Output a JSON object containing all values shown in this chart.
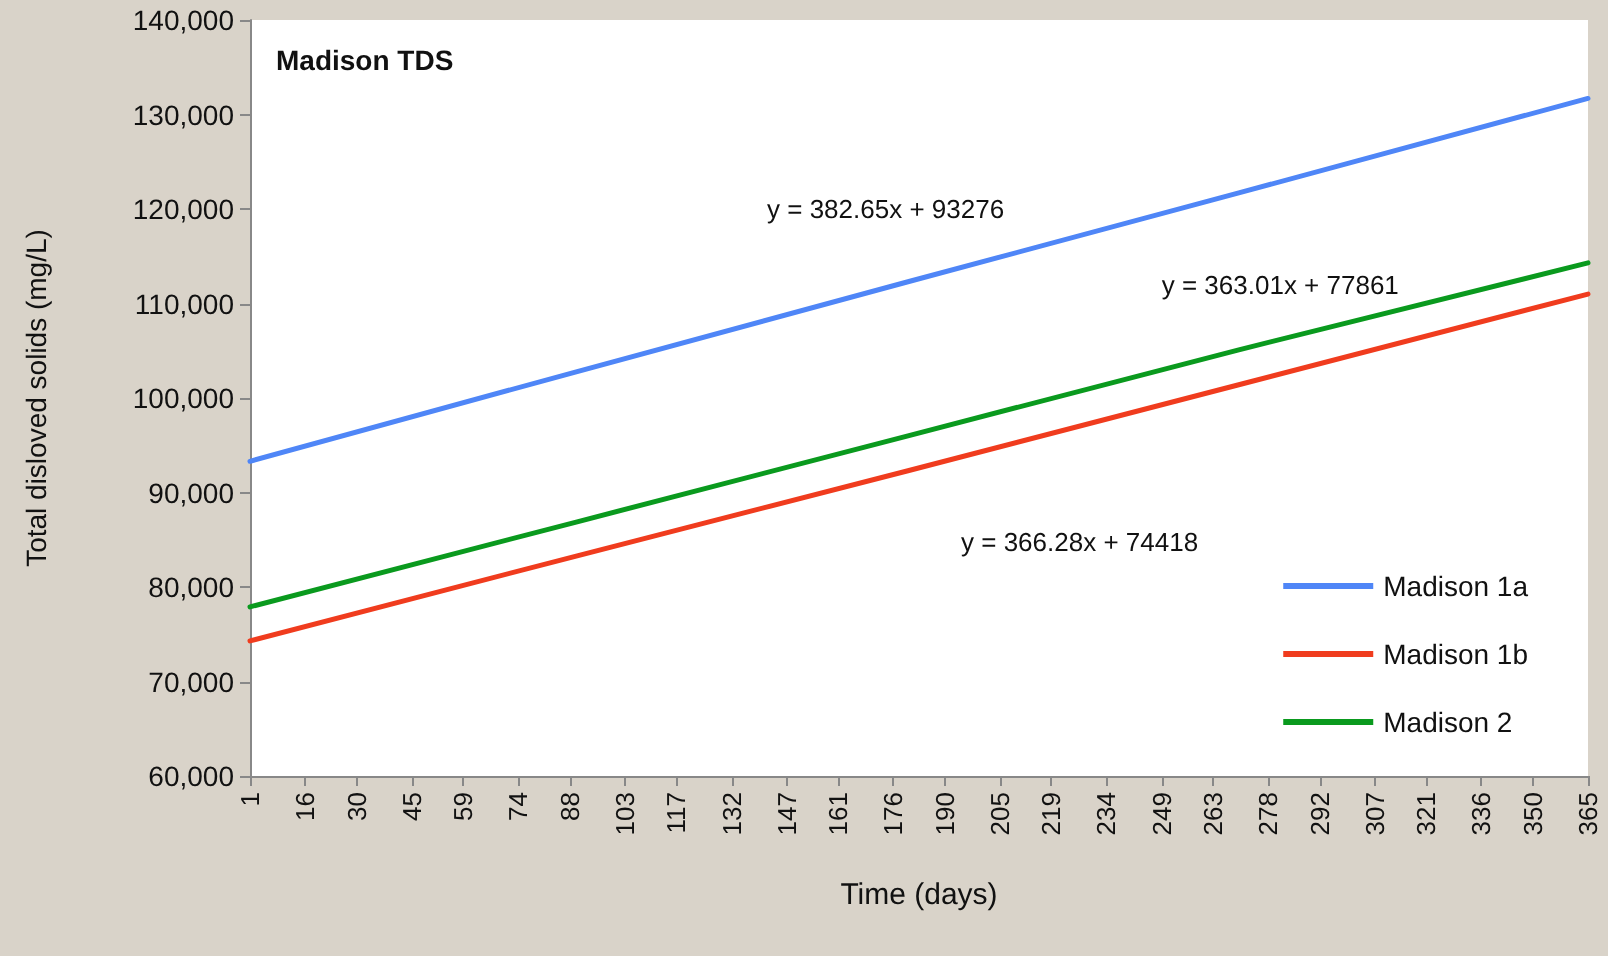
{
  "chart_data": {
    "type": "line",
    "title": "Madison TDS",
    "xlabel": "Time (days)",
    "ylabel": "Total disloved solids (mg/L)",
    "x": [
      1,
      90,
      180,
      270,
      365
    ],
    "series": [
      {
        "name": "Madison 1a",
        "color": "#4f86f7",
        "values": [
          93300,
          102800,
          112300,
          121700,
          131700
        ]
      },
      {
        "name": "Madison 1b",
        "color": "#f03c1e",
        "values": [
          74300,
          83300,
          92300,
          101400,
          111000
        ]
      },
      {
        "name": "Madison 2",
        "color": "#0a9a1e",
        "values": [
          77900,
          86900,
          96000,
          105100,
          114300
        ]
      }
    ],
    "xlim": [
      1,
      365
    ],
    "xticks": [
      1,
      16,
      30,
      45,
      59,
      74,
      88,
      103,
      117,
      132,
      147,
      161,
      176,
      190,
      205,
      219,
      234,
      249,
      263,
      278,
      292,
      307,
      321,
      336,
      350,
      365
    ],
    "ylim": [
      60000,
      140000
    ],
    "yticks": [
      {
        "value": 60000,
        "label": "60,000"
      },
      {
        "value": 70000,
        "label": "70,000"
      },
      {
        "value": 80000,
        "label": "80,000"
      },
      {
        "value": 90000,
        "label": "90,000"
      },
      {
        "value": 100000,
        "label": "100,000"
      },
      {
        "value": 110000,
        "label": "110,000"
      },
      {
        "value": 120000,
        "label": "120,000"
      },
      {
        "value": 130000,
        "label": "130,000"
      },
      {
        "value": 140000,
        "label": "140,000"
      }
    ],
    "annotations": [
      "y = 382.65x + 93276",
      "y = 363.01x + 77861",
      "y = 366.28x + 74418"
    ],
    "grid": false,
    "legend": "bottom right"
  }
}
